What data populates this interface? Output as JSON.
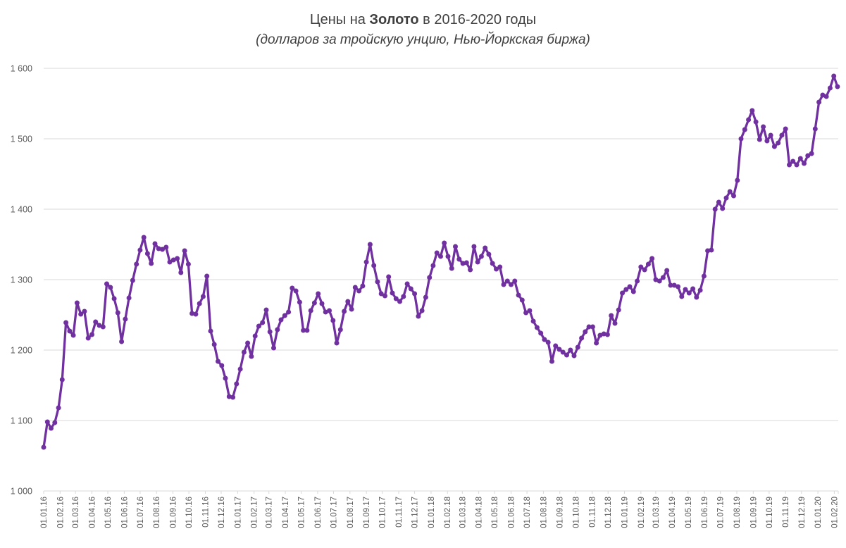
{
  "title": {
    "prefix": "Цены на ",
    "bold": "Золото",
    "suffix": " в 2016-2020 годы"
  },
  "subtitle": "(долларов за тройскую унцию, Нью-Йоркская биржа)",
  "colors": {
    "line": "#7030A0",
    "grid": "#D9D9D9",
    "axis_text": "#595959",
    "title_text": "#3F3F3F",
    "background": "#FFFFFF"
  },
  "chart_data": {
    "type": "line",
    "title": "Цены на Золото в 2016-2020 годы",
    "subtitle": "(долларов за тройскую унцию, Нью-Йоркская биржа)",
    "xlabel": "",
    "ylabel": "",
    "ylim": [
      1000,
      1600
    ],
    "y_step": 100,
    "y_tick_labels": [
      "1 600",
      "1 500",
      "1 400",
      "1 300",
      "1 200",
      "1 100",
      "1 000"
    ],
    "x_tick_labels": [
      "01.01.16",
      "01.02.16",
      "01.03.16",
      "01.04.16",
      "01.05.16",
      "01.06.16",
      "01.07.16",
      "01.08.16",
      "01.09.16",
      "01.10.16",
      "01.11.16",
      "01.12.16",
      "01.01.17",
      "01.02.17",
      "01.03.17",
      "01.04.17",
      "01.05.17",
      "01.06.17",
      "01.07.17",
      "01.08.17",
      "01.09.17",
      "01.10.17",
      "01.11.17",
      "01.12.17",
      "01.01.18",
      "01.02.18",
      "01.03.18",
      "01.04.18",
      "01.05.18",
      "01.06.18",
      "01.07.18",
      "01.08.18",
      "01.09.18",
      "01.10.18",
      "01.11.18",
      "01.12.18",
      "01.01.19",
      "01.02.19",
      "01.03.19",
      "01.04.19",
      "01.05.19",
      "01.06.19",
      "01.07.19",
      "01.08.19",
      "01.09.19",
      "01.10.19",
      "01.11.19",
      "01.12.19",
      "01.01.20",
      "01.02.20"
    ],
    "grid": "horizontal",
    "legend_position": "none",
    "marker": "circle",
    "series": [
      {
        "name": "Золото",
        "color": "#7030A0",
        "dates": [
          "01.01.16",
          "08.01.16",
          "15.01.16",
          "22.01.16",
          "29.01.16",
          "05.02.16",
          "12.02.16",
          "19.02.16",
          "26.02.16",
          "04.03.16",
          "11.03.16",
          "18.03.16",
          "25.03.16",
          "01.04.16",
          "08.04.16",
          "15.04.16",
          "22.04.16",
          "29.04.16",
          "06.05.16",
          "13.05.16",
          "20.05.16",
          "27.05.16",
          "03.06.16",
          "10.06.16",
          "17.06.16",
          "24.06.16",
          "01.07.16",
          "08.07.16",
          "15.07.16",
          "22.07.16",
          "29.07.16",
          "05.08.16",
          "12.08.16",
          "19.08.16",
          "26.08.16",
          "02.09.16",
          "09.09.16",
          "16.09.16",
          "23.09.16",
          "30.09.16",
          "07.10.16",
          "14.10.16",
          "21.10.16",
          "28.10.16",
          "04.11.16",
          "11.11.16",
          "18.11.16",
          "25.11.16",
          "02.12.16",
          "09.12.16",
          "16.12.16",
          "23.12.16",
          "30.12.16",
          "06.01.17",
          "13.01.17",
          "20.01.17",
          "27.01.17",
          "03.02.17",
          "10.02.17",
          "17.02.17",
          "24.02.17",
          "03.03.17",
          "10.03.17",
          "17.03.17",
          "24.03.17",
          "31.03.17",
          "07.04.17",
          "14.04.17",
          "21.04.17",
          "28.04.17",
          "05.05.17",
          "12.05.17",
          "19.05.17",
          "26.05.17",
          "02.06.17",
          "09.06.17",
          "16.06.17",
          "23.06.17",
          "30.06.17",
          "07.07.17",
          "14.07.17",
          "21.07.17",
          "28.07.17",
          "04.08.17",
          "11.08.17",
          "18.08.17",
          "25.08.17",
          "01.09.17",
          "08.09.17",
          "15.09.17",
          "22.09.17",
          "29.09.17",
          "06.10.17",
          "13.10.17",
          "20.10.17",
          "27.10.17",
          "03.11.17",
          "10.11.17",
          "17.11.17",
          "24.11.17",
          "01.12.17",
          "08.12.17",
          "15.12.17",
          "22.12.17",
          "29.12.17",
          "05.01.18",
          "12.01.18",
          "19.01.18",
          "26.01.18",
          "02.02.18",
          "09.02.18",
          "16.02.18",
          "23.02.18",
          "02.03.18",
          "09.03.18",
          "16.03.18",
          "23.03.18",
          "30.03.18",
          "06.04.18",
          "13.04.18",
          "20.04.18",
          "27.04.18",
          "04.05.18",
          "11.05.18",
          "18.05.18",
          "25.05.18",
          "01.06.18",
          "08.06.18",
          "15.06.18",
          "22.06.18",
          "29.06.18",
          "06.07.18",
          "13.07.18",
          "20.07.18",
          "27.07.18",
          "03.08.18",
          "10.08.18",
          "17.08.18",
          "24.08.18",
          "31.08.18",
          "07.09.18",
          "14.09.18",
          "21.09.18",
          "28.09.18",
          "05.10.18",
          "12.10.18",
          "19.10.18",
          "26.10.18",
          "02.11.18",
          "09.11.18",
          "16.11.18",
          "23.11.18",
          "30.11.18",
          "07.12.18",
          "14.12.18",
          "21.12.18",
          "28.12.18",
          "04.01.19",
          "11.01.19",
          "18.01.19",
          "25.01.19",
          "01.02.19",
          "08.02.19",
          "15.02.19",
          "22.02.19",
          "01.03.19",
          "08.03.19",
          "15.03.19",
          "22.03.19",
          "29.03.19",
          "05.04.19",
          "12.04.19",
          "19.04.19",
          "26.04.19",
          "03.05.19",
          "10.05.19",
          "17.05.19",
          "24.05.19",
          "31.05.19",
          "07.06.19",
          "14.06.19",
          "21.06.19",
          "28.06.19",
          "05.07.19",
          "12.07.19",
          "19.07.19",
          "26.07.19",
          "02.08.19",
          "09.08.19",
          "16.08.19",
          "23.08.19",
          "30.08.19",
          "06.09.19",
          "13.09.19",
          "20.09.19",
          "27.09.19",
          "04.10.19",
          "11.10.19",
          "18.10.19",
          "25.10.19",
          "01.11.19",
          "08.11.19",
          "15.11.19",
          "22.11.19",
          "29.11.19",
          "06.12.19",
          "13.12.19",
          "20.12.19",
          "27.12.19",
          "03.01.20",
          "10.01.20",
          "17.01.20",
          "24.01.20",
          "31.01.20",
          "07.02.20"
        ],
        "values": [
          1062,
          1098,
          1089,
          1097,
          1118,
          1158,
          1239,
          1227,
          1221,
          1267,
          1251,
          1255,
          1217,
          1222,
          1240,
          1235,
          1233,
          1294,
          1289,
          1273,
          1253,
          1212,
          1244,
          1274,
          1299,
          1322,
          1342,
          1360,
          1337,
          1323,
          1351,
          1344,
          1343,
          1346,
          1325,
          1328,
          1330,
          1310,
          1341,
          1322,
          1252,
          1251,
          1266,
          1276,
          1305,
          1227,
          1208,
          1184,
          1178,
          1160,
          1134,
          1133,
          1152,
          1173,
          1197,
          1210,
          1191,
          1220,
          1234,
          1239,
          1257,
          1226,
          1203,
          1229,
          1243,
          1249,
          1254,
          1288,
          1284,
          1268,
          1228,
          1228,
          1256,
          1267,
          1280,
          1266,
          1254,
          1256,
          1242,
          1210,
          1229,
          1255,
          1269,
          1258,
          1289,
          1284,
          1291,
          1325,
          1350,
          1320,
          1297,
          1280,
          1277,
          1304,
          1281,
          1273,
          1269,
          1276,
          1294,
          1287,
          1280,
          1248,
          1256,
          1275,
          1303,
          1320,
          1338,
          1333,
          1352,
          1333,
          1316,
          1347,
          1329,
          1323,
          1324,
          1314,
          1347,
          1325,
          1333,
          1345,
          1336,
          1323,
          1315,
          1318,
          1293,
          1298,
          1293,
          1298,
          1278,
          1271,
          1253,
          1256,
          1241,
          1232,
          1224,
          1215,
          1211,
          1184,
          1206,
          1201,
          1197,
          1193,
          1200,
          1192,
          1204,
          1217,
          1226,
          1233,
          1233,
          1210,
          1221,
          1223,
          1222,
          1249,
          1238,
          1257,
          1281,
          1286,
          1290,
          1283,
          1298,
          1318,
          1314,
          1322,
          1330,
          1300,
          1298,
          1303,
          1313,
          1292,
          1292,
          1290,
          1276,
          1286,
          1281,
          1287,
          1275,
          1285,
          1305,
          1341,
          1342,
          1400,
          1410,
          1401,
          1416,
          1425,
          1419,
          1441,
          1500,
          1513,
          1527,
          1540,
          1524,
          1499,
          1517,
          1497,
          1505,
          1489,
          1494,
          1505,
          1514,
          1463,
          1468,
          1463,
          1472,
          1465,
          1476,
          1479,
          1514,
          1552,
          1562,
          1560,
          1572,
          1589,
          1574
        ]
      }
    ]
  }
}
